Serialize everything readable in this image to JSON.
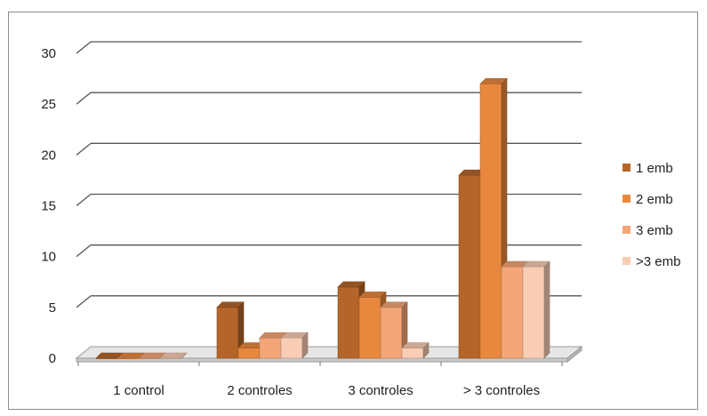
{
  "chart_data": {
    "type": "bar",
    "categories": [
      "1 control",
      "2 controles",
      "3 controles",
      "> 3 controles"
    ],
    "series": [
      {
        "name": "1 emb",
        "color": "#b5652a",
        "values": [
          0,
          5,
          7,
          18
        ]
      },
      {
        "name": "2 emb",
        "color": "#e8883f",
        "values": [
          0,
          1,
          6,
          27
        ]
      },
      {
        "name": "3 emb",
        "color": "#f4a678",
        "values": [
          0,
          2,
          5,
          9
        ]
      },
      {
        "name": ">3 emb",
        "color": "#f9cdb4",
        "values": [
          0,
          2,
          1,
          9
        ]
      }
    ],
    "y_ticks": [
      "0",
      "5",
      "10",
      "15",
      "20",
      "25",
      "30"
    ],
    "ylim": [
      0,
      30
    ],
    "grid": true,
    "legend_position": "right",
    "style": "3d-clustered-column"
  }
}
